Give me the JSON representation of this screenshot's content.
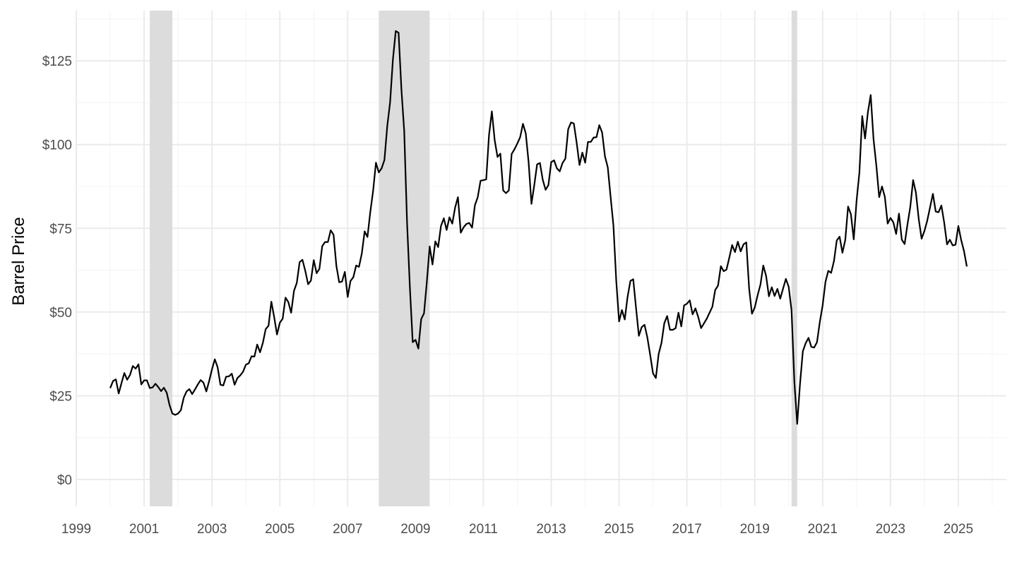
{
  "chart_data": {
    "type": "line",
    "title": "",
    "xlabel": "",
    "ylabel": "Barrel Price",
    "x_ticks": [
      "1999",
      "2001",
      "2003",
      "2005",
      "2007",
      "2009",
      "2011",
      "2013",
      "2015",
      "2017",
      "2019",
      "2021",
      "2023",
      "2025"
    ],
    "y_ticks": [
      "$0",
      "$25",
      "$50",
      "$75",
      "$100",
      "$125"
    ],
    "y_tick_values": [
      0,
      25,
      50,
      75,
      100,
      125
    ],
    "xlim": [
      "1999-01-01",
      "2026-06-01"
    ],
    "ylim": [
      -8,
      140
    ],
    "grid": true,
    "recession_shading": [
      {
        "start": "2001-03-01",
        "end": "2001-11-01"
      },
      {
        "start": "2007-12-01",
        "end": "2009-06-01"
      },
      {
        "start": "2020-02-01",
        "end": "2020-04-01"
      }
    ],
    "colors": {
      "line": "#000000",
      "recession": "#dcdcdc",
      "grid_major": "#ebebeb",
      "grid_minor": "#f4f4f4"
    },
    "series": [
      {
        "x": [
          "2000-01",
          "2000-02",
          "2000-03",
          "2000-04",
          "2000-05",
          "2000-06",
          "2000-07",
          "2000-08",
          "2000-09",
          "2000-10",
          "2000-11",
          "2000-12",
          "2001-01",
          "2001-02",
          "2001-03",
          "2001-04",
          "2001-05",
          "2001-06",
          "2001-07",
          "2001-08",
          "2001-09",
          "2001-10",
          "2001-11",
          "2001-12",
          "2002-01",
          "2002-02",
          "2002-03",
          "2002-04",
          "2002-05",
          "2002-06",
          "2002-07",
          "2002-08",
          "2002-09",
          "2002-10",
          "2002-11",
          "2002-12",
          "2003-01",
          "2003-02",
          "2003-03",
          "2003-04",
          "2003-05",
          "2003-06",
          "2003-07",
          "2003-08",
          "2003-09",
          "2003-10",
          "2003-11",
          "2003-12",
          "2004-01",
          "2004-02",
          "2004-03",
          "2004-04",
          "2004-05",
          "2004-06",
          "2004-07",
          "2004-08",
          "2004-09",
          "2004-10",
          "2004-11",
          "2004-12",
          "2005-01",
          "2005-02",
          "2005-03",
          "2005-04",
          "2005-05",
          "2005-06",
          "2005-07",
          "2005-08",
          "2005-09",
          "2005-10",
          "2005-11",
          "2005-12",
          "2006-01",
          "2006-02",
          "2006-03",
          "2006-04",
          "2006-05",
          "2006-06",
          "2006-07",
          "2006-08",
          "2006-09",
          "2006-10",
          "2006-11",
          "2006-12",
          "2007-01",
          "2007-02",
          "2007-03",
          "2007-04",
          "2007-05",
          "2007-06",
          "2007-07",
          "2007-08",
          "2007-09",
          "2007-10",
          "2007-11",
          "2007-12",
          "2008-01",
          "2008-02",
          "2008-03",
          "2008-04",
          "2008-05",
          "2008-06",
          "2008-07",
          "2008-08",
          "2008-09",
          "2008-10",
          "2008-11",
          "2008-12",
          "2009-01",
          "2009-02",
          "2009-03",
          "2009-04",
          "2009-05",
          "2009-06",
          "2009-07",
          "2009-08",
          "2009-09",
          "2009-10",
          "2009-11",
          "2009-12",
          "2010-01",
          "2010-02",
          "2010-03",
          "2010-04",
          "2010-05",
          "2010-06",
          "2010-07",
          "2010-08",
          "2010-09",
          "2010-10",
          "2010-11",
          "2010-12",
          "2011-01",
          "2011-02",
          "2011-03",
          "2011-04",
          "2011-05",
          "2011-06",
          "2011-07",
          "2011-08",
          "2011-09",
          "2011-10",
          "2011-11",
          "2011-12",
          "2012-01",
          "2012-02",
          "2012-03",
          "2012-04",
          "2012-05",
          "2012-06",
          "2012-07",
          "2012-08",
          "2012-09",
          "2012-10",
          "2012-11",
          "2012-12",
          "2013-01",
          "2013-02",
          "2013-03",
          "2013-04",
          "2013-05",
          "2013-06",
          "2013-07",
          "2013-08",
          "2013-09",
          "2013-10",
          "2013-11",
          "2013-12",
          "2014-01",
          "2014-02",
          "2014-03",
          "2014-04",
          "2014-05",
          "2014-06",
          "2014-07",
          "2014-08",
          "2014-09",
          "2014-10",
          "2014-11",
          "2014-12",
          "2015-01",
          "2015-02",
          "2015-03",
          "2015-04",
          "2015-05",
          "2015-06",
          "2015-07",
          "2015-08",
          "2015-09",
          "2015-10",
          "2015-11",
          "2015-12",
          "2016-01",
          "2016-02",
          "2016-03",
          "2016-04",
          "2016-05",
          "2016-06",
          "2016-07",
          "2016-08",
          "2016-09",
          "2016-10",
          "2016-11",
          "2016-12",
          "2017-01",
          "2017-02",
          "2017-03",
          "2017-04",
          "2017-05",
          "2017-06",
          "2017-07",
          "2017-08",
          "2017-09",
          "2017-10",
          "2017-11",
          "2017-12",
          "2018-01",
          "2018-02",
          "2018-03",
          "2018-04",
          "2018-05",
          "2018-06",
          "2018-07",
          "2018-08",
          "2018-09",
          "2018-10",
          "2018-11",
          "2018-12",
          "2019-01",
          "2019-02",
          "2019-03",
          "2019-04",
          "2019-05",
          "2019-06",
          "2019-07",
          "2019-08",
          "2019-09",
          "2019-10",
          "2019-11",
          "2019-12",
          "2020-01",
          "2020-02",
          "2020-03",
          "2020-04",
          "2020-05",
          "2020-06",
          "2020-07",
          "2020-08",
          "2020-09",
          "2020-10",
          "2020-11",
          "2020-12",
          "2021-01",
          "2021-02",
          "2021-03",
          "2021-04",
          "2021-05",
          "2021-06",
          "2021-07",
          "2021-08",
          "2021-09",
          "2021-10",
          "2021-11",
          "2021-12",
          "2022-01",
          "2022-02",
          "2022-03",
          "2022-04",
          "2022-05",
          "2022-06",
          "2022-07",
          "2022-08",
          "2022-09",
          "2022-10",
          "2022-11",
          "2022-12",
          "2023-01",
          "2023-02",
          "2023-03",
          "2023-04",
          "2023-05",
          "2023-06",
          "2023-07",
          "2023-08",
          "2023-09",
          "2023-10",
          "2023-11",
          "2023-12",
          "2024-01",
          "2024-02",
          "2024-03",
          "2024-04",
          "2024-05",
          "2024-06",
          "2024-07",
          "2024-08",
          "2024-09",
          "2024-10",
          "2024-11",
          "2024-12",
          "2025-01",
          "2025-02",
          "2025-03",
          "2025-04"
        ],
        "values": [
          27.3,
          29.4,
          29.9,
          25.7,
          28.8,
          31.8,
          29.8,
          31.2,
          33.9,
          33.1,
          34.4,
          28.4,
          29.6,
          29.6,
          27.3,
          27.5,
          28.6,
          27.6,
          26.4,
          27.4,
          25.9,
          22.2,
          19.7,
          19.3,
          19.7,
          20.7,
          24.4,
          26.3,
          27.0,
          25.5,
          26.9,
          28.4,
          29.7,
          28.9,
          26.3,
          29.4,
          32.9,
          35.9,
          33.5,
          28.3,
          28.1,
          30.7,
          30.8,
          31.6,
          28.3,
          30.3,
          31.1,
          32.2,
          34.3,
          34.7,
          36.8,
          36.7,
          40.3,
          38.0,
          40.8,
          44.9,
          45.9,
          53.1,
          48.5,
          43.3,
          46.8,
          48.0,
          54.3,
          53.0,
          49.8,
          56.3,
          58.7,
          64.9,
          65.6,
          62.3,
          58.3,
          59.4,
          65.5,
          61.6,
          62.9,
          69.7,
          70.9,
          70.9,
          74.4,
          73.1,
          63.8,
          58.9,
          59.1,
          62.0,
          54.5,
          59.3,
          60.4,
          63.9,
          63.5,
          67.5,
          74.1,
          72.4,
          79.9,
          86.2,
          94.6,
          91.7,
          92.9,
          95.4,
          105.5,
          112.6,
          125.4,
          133.9,
          133.4,
          116.6,
          104.0,
          76.7,
          57.4,
          41.0,
          41.7,
          39.1,
          47.9,
          49.6,
          59.0,
          69.6,
          64.2,
          71.1,
          69.4,
          75.7,
          78.0,
          74.5,
          78.3,
          76.4,
          81.2,
          84.3,
          73.7,
          75.3,
          76.3,
          76.6,
          75.2,
          81.9,
          84.3,
          89.2,
          89.4,
          89.6,
          102.9,
          109.9,
          101.3,
          96.3,
          97.3,
          86.3,
          85.5,
          86.3,
          97.2,
          98.6,
          100.3,
          102.2,
          106.2,
          103.3,
          94.7,
          82.3,
          87.9,
          94.1,
          94.5,
          89.5,
          86.5,
          87.9,
          94.8,
          95.3,
          92.9,
          92.0,
          94.5,
          95.8,
          104.6,
          106.6,
          106.3,
          100.5,
          93.9,
          97.6,
          94.6,
          100.8,
          100.8,
          102.1,
          102.2,
          105.8,
          103.6,
          96.5,
          93.2,
          84.4,
          75.8,
          59.3,
          47.2,
          50.6,
          47.8,
          54.5,
          59.3,
          59.8,
          51.2,
          42.9,
          45.5,
          46.2,
          42.4,
          37.2,
          31.7,
          30.3,
          37.5,
          40.8,
          46.7,
          48.8,
          44.7,
          44.7,
          45.2,
          49.8,
          45.7,
          52.0,
          52.5,
          53.5,
          49.3,
          51.1,
          48.5,
          45.2,
          46.6,
          48.0,
          49.8,
          51.6,
          56.6,
          57.9,
          63.7,
          62.2,
          62.7,
          66.3,
          70.0,
          67.9,
          71.0,
          68.1,
          70.2,
          70.8,
          57.0,
          49.5,
          51.4,
          55.0,
          58.2,
          63.9,
          60.8,
          54.7,
          57.4,
          54.8,
          56.9,
          54.0,
          57.0,
          59.9,
          57.5,
          50.5,
          29.2,
          16.6,
          28.6,
          38.3,
          40.7,
          42.3,
          39.6,
          39.4,
          41.0,
          47.0,
          52.0,
          59.0,
          62.3,
          61.7,
          65.2,
          71.4,
          72.5,
          67.7,
          71.5,
          81.5,
          79.2,
          71.7,
          83.2,
          91.6,
          108.5,
          101.8,
          109.6,
          114.8,
          101.6,
          93.7,
          84.3,
          87.5,
          84.4,
          76.4,
          78.1,
          76.8,
          73.3,
          79.4,
          71.6,
          70.3,
          76.1,
          81.4,
          89.4,
          85.6,
          77.7,
          71.9,
          74.2,
          77.3,
          81.3,
          85.3,
          80.0,
          79.8,
          81.8,
          76.7,
          70.2,
          71.6,
          69.9,
          70.1,
          75.7,
          71.5,
          68.2,
          63.6
        ]
      }
    ]
  }
}
